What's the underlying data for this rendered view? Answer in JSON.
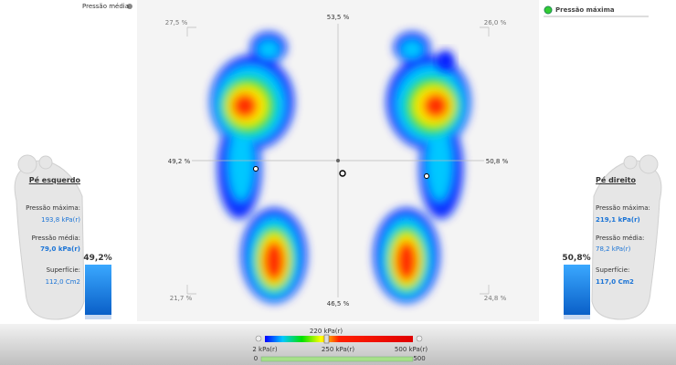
{
  "header": {
    "mean_option": "Pressão média",
    "max_option": "Pressão máxima"
  },
  "plot": {
    "top_left": "27,5 %",
    "top": "53,5 %",
    "top_right": "26,0 %",
    "left": "49,2 %",
    "right": "50,8 %",
    "bottom_left": "21,7 %",
    "bottom": "46,5 %",
    "bottom_right": "24,8 %"
  },
  "left_foot": {
    "title": "Pé esquerdo",
    "max_label": "Pressão máxima:",
    "max_value": "193,8 kPa(r)",
    "mean_label": "Pressão média:",
    "mean_value": "79,0 kPa(r)",
    "surface_label": "Superfície:",
    "surface_value": "112,0 Cm2",
    "share": "49,2%"
  },
  "right_foot": {
    "title": "Pé direito",
    "max_label": "Pressão máxima:",
    "max_value": "219,1 kPa(r)",
    "mean_label": "Pressão média:",
    "mean_value": "78,2 kPa(r)",
    "surface_label": "Superfície:",
    "surface_value": "117,0 Cm2",
    "share": "50,8%"
  },
  "scale": {
    "current": "220 kPa(r)",
    "min": "2 kPa(r)",
    "mid": "250 kPa(r)",
    "max": "500 kPa(r)",
    "range_min": "0",
    "range_max": "500"
  }
}
